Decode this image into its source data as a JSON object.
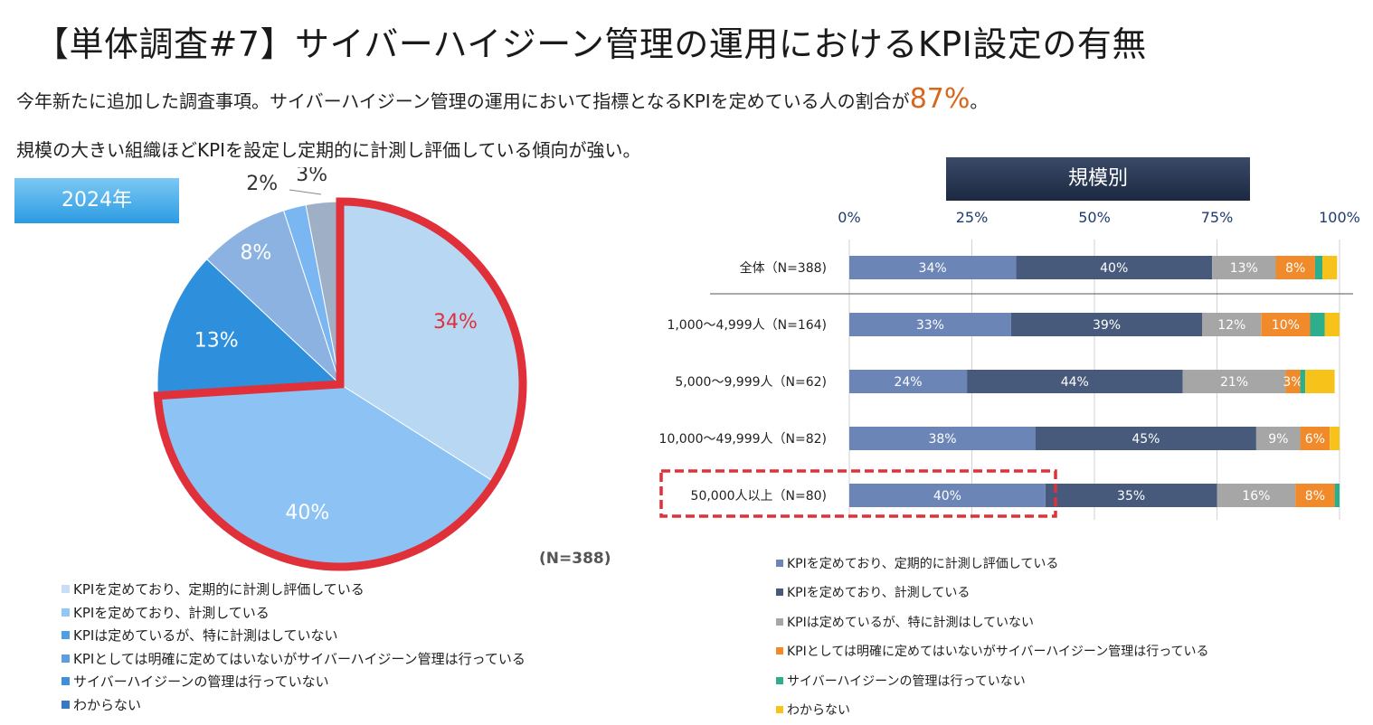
{
  "header": {
    "title": "【単体調査#7】サイバーハイジーン管理の運用におけるKPI設定の有無",
    "subtitle_pre": "今年新たに追加した調査事項。サイバーハイジーン管理の運用において指標となるKPIを定めている人の割合が",
    "subtitle_highlight": "87%",
    "subtitle_post": "。",
    "subtitle2": "規模の大きい組織ほどKPIを設定し定期的に計測し評価している傾向が強い。"
  },
  "pie": {
    "year_label": "2024年",
    "n_label": "(N=388)"
  },
  "bar": {
    "section_title": "規模別"
  },
  "colors": {
    "highlight": "#d9661a",
    "outline_red": "#e0303a",
    "bar_series": [
      "#6b86b6",
      "#475a7c",
      "#a6a6a6",
      "#f08a2a",
      "#2fae8e",
      "#f7c21a"
    ]
  },
  "chart_data": [
    {
      "type": "pie",
      "categories": [
        "KPIを定めており、定期的に計測し評価している",
        "KPIを定めており、計測している",
        "KPIは定めているが、特に計測はしていない",
        "KPIとしては明確に定めてはいないがサイバーハイジーン管理は行っている",
        "サイバーハイジーンの管理は行っていない",
        "わからない"
      ],
      "values": [
        34,
        40,
        13,
        8,
        2,
        3
      ],
      "labels": [
        "34%",
        "40%",
        "13%",
        "8%",
        "2%",
        "3%"
      ],
      "colors": [
        "#b8d7f3",
        "#8cc3f4",
        "#2e8fdd",
        "#8bb2e0",
        "#79b6f2",
        "#9fb0c6"
      ],
      "legend_colors": [
        "#c7dff5",
        "#92c7f5",
        "#4d9fe2",
        "#5e9ee0",
        "#3f8fdc",
        "#3979c4"
      ],
      "legend_position": "bottom"
    },
    {
      "type": "bar",
      "orientation": "horizontal-stacked",
      "categories": [
        "全体（N=388)",
        "1,000～4,999人（N=164)",
        "5,000～9,999人（N=62)",
        "10,000～49,999人（N=82)",
        "50,000人以上（N=80)"
      ],
      "series": [
        {
          "name": "KPIを定めており、定期的に計測し評価している",
          "values": [
            34,
            33,
            24,
            38,
            40
          ],
          "labels": [
            "34%",
            "33%",
            "24%",
            "38%",
            "40%"
          ]
        },
        {
          "name": "KPIを定めており、計測している",
          "values": [
            40,
            39,
            44,
            45,
            35
          ],
          "labels": [
            "40%",
            "39%",
            "44%",
            "45%",
            "35%"
          ]
        },
        {
          "name": "KPIは定めているが、特に計測はしていない",
          "values": [
            13,
            12,
            21,
            9,
            16
          ],
          "labels": [
            "13%",
            "12%",
            "21%",
            "9%",
            "16%"
          ]
        },
        {
          "name": "KPIとしては明確に定めてはいないがサイバーハイジーン管理は行っている",
          "values": [
            8,
            10,
            3,
            6,
            8
          ],
          "labels": [
            "8%",
            "10%",
            "3%",
            "6%",
            "8%"
          ]
        },
        {
          "name": "サイバーハイジーンの管理は行っていない",
          "values": [
            1.5,
            3,
            1,
            0,
            1
          ],
          "labels": [
            "",
            "",
            "",
            "",
            ""
          ]
        },
        {
          "name": "わからない",
          "values": [
            3,
            3,
            6,
            2,
            0
          ],
          "labels": [
            "",
            "",
            "",
            "",
            ""
          ]
        }
      ],
      "xticks": [
        "0%",
        "25%",
        "50%",
        "75%",
        "100%"
      ],
      "xlim": [
        0,
        100
      ],
      "grid": true,
      "legend_position": "bottom"
    }
  ]
}
